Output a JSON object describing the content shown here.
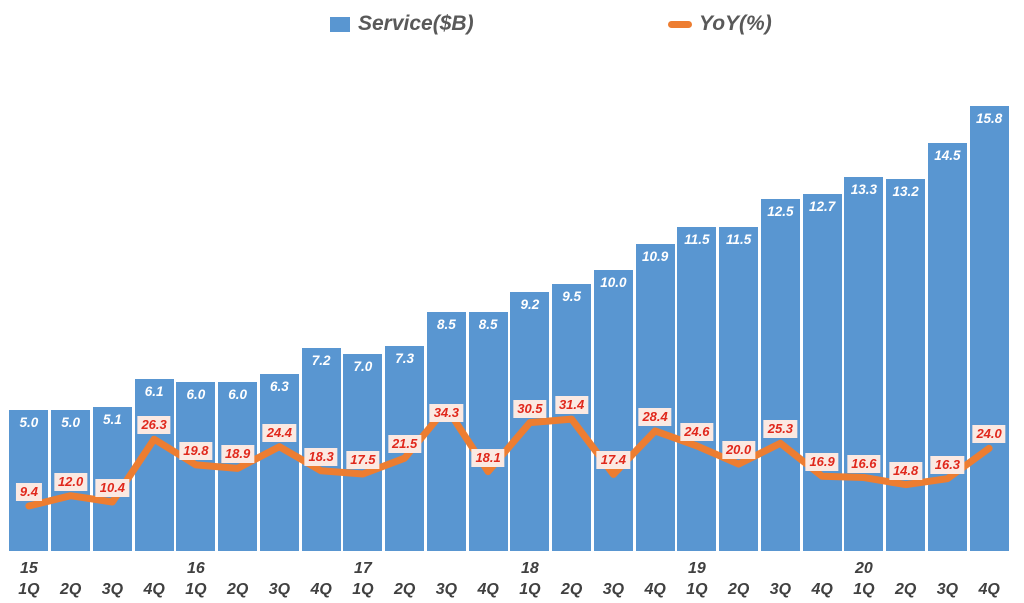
{
  "legend": {
    "series1_label": "Service($B)",
    "series2_label": "YoY(%)"
  },
  "colors": {
    "bar": "#5996D1",
    "line": "#ED7D31",
    "bar_label": "#FFFFFF",
    "yoy_label_text": "#E0281C",
    "yoy_label_bg": "#FBE9E2",
    "axis_text": "#404040",
    "legend_text": "#595959"
  },
  "chart_data": {
    "type": "bar+line",
    "categories": [
      "15 1Q",
      "15 2Q",
      "15 3Q",
      "15 4Q",
      "16 1Q",
      "16 2Q",
      "16 3Q",
      "16 4Q",
      "17 1Q",
      "17 2Q",
      "17 3Q",
      "17 4Q",
      "18 1Q",
      "18 2Q",
      "18 3Q",
      "18 4Q",
      "19 1Q",
      "19 2Q",
      "19 3Q",
      "19 4Q",
      "20 1Q",
      "20 2Q",
      "20 3Q",
      "20 4Q"
    ],
    "year_labels": [
      "15",
      "16",
      "17",
      "18",
      "19",
      "20"
    ],
    "quarter_labels": [
      "1Q",
      "2Q",
      "3Q",
      "4Q"
    ],
    "series": [
      {
        "name": "Service($B)",
        "type": "bar",
        "values": [
          5.0,
          5.0,
          5.1,
          6.1,
          6.0,
          6.0,
          6.3,
          7.2,
          7.0,
          7.3,
          8.5,
          8.5,
          9.2,
          9.5,
          10.0,
          10.9,
          11.5,
          11.5,
          12.5,
          12.7,
          13.3,
          13.2,
          14.5,
          15.8
        ]
      },
      {
        "name": "YoY(%)",
        "type": "line",
        "values": [
          9.4,
          12.0,
          10.4,
          26.3,
          19.8,
          18.9,
          24.4,
          18.3,
          17.5,
          21.5,
          34.3,
          18.1,
          30.5,
          31.4,
          17.4,
          28.4,
          24.6,
          20.0,
          25.3,
          16.9,
          16.6,
          14.8,
          16.3,
          24.0
        ]
      }
    ],
    "legend_position": "top",
    "grid": false,
    "axis_lines": false
  }
}
